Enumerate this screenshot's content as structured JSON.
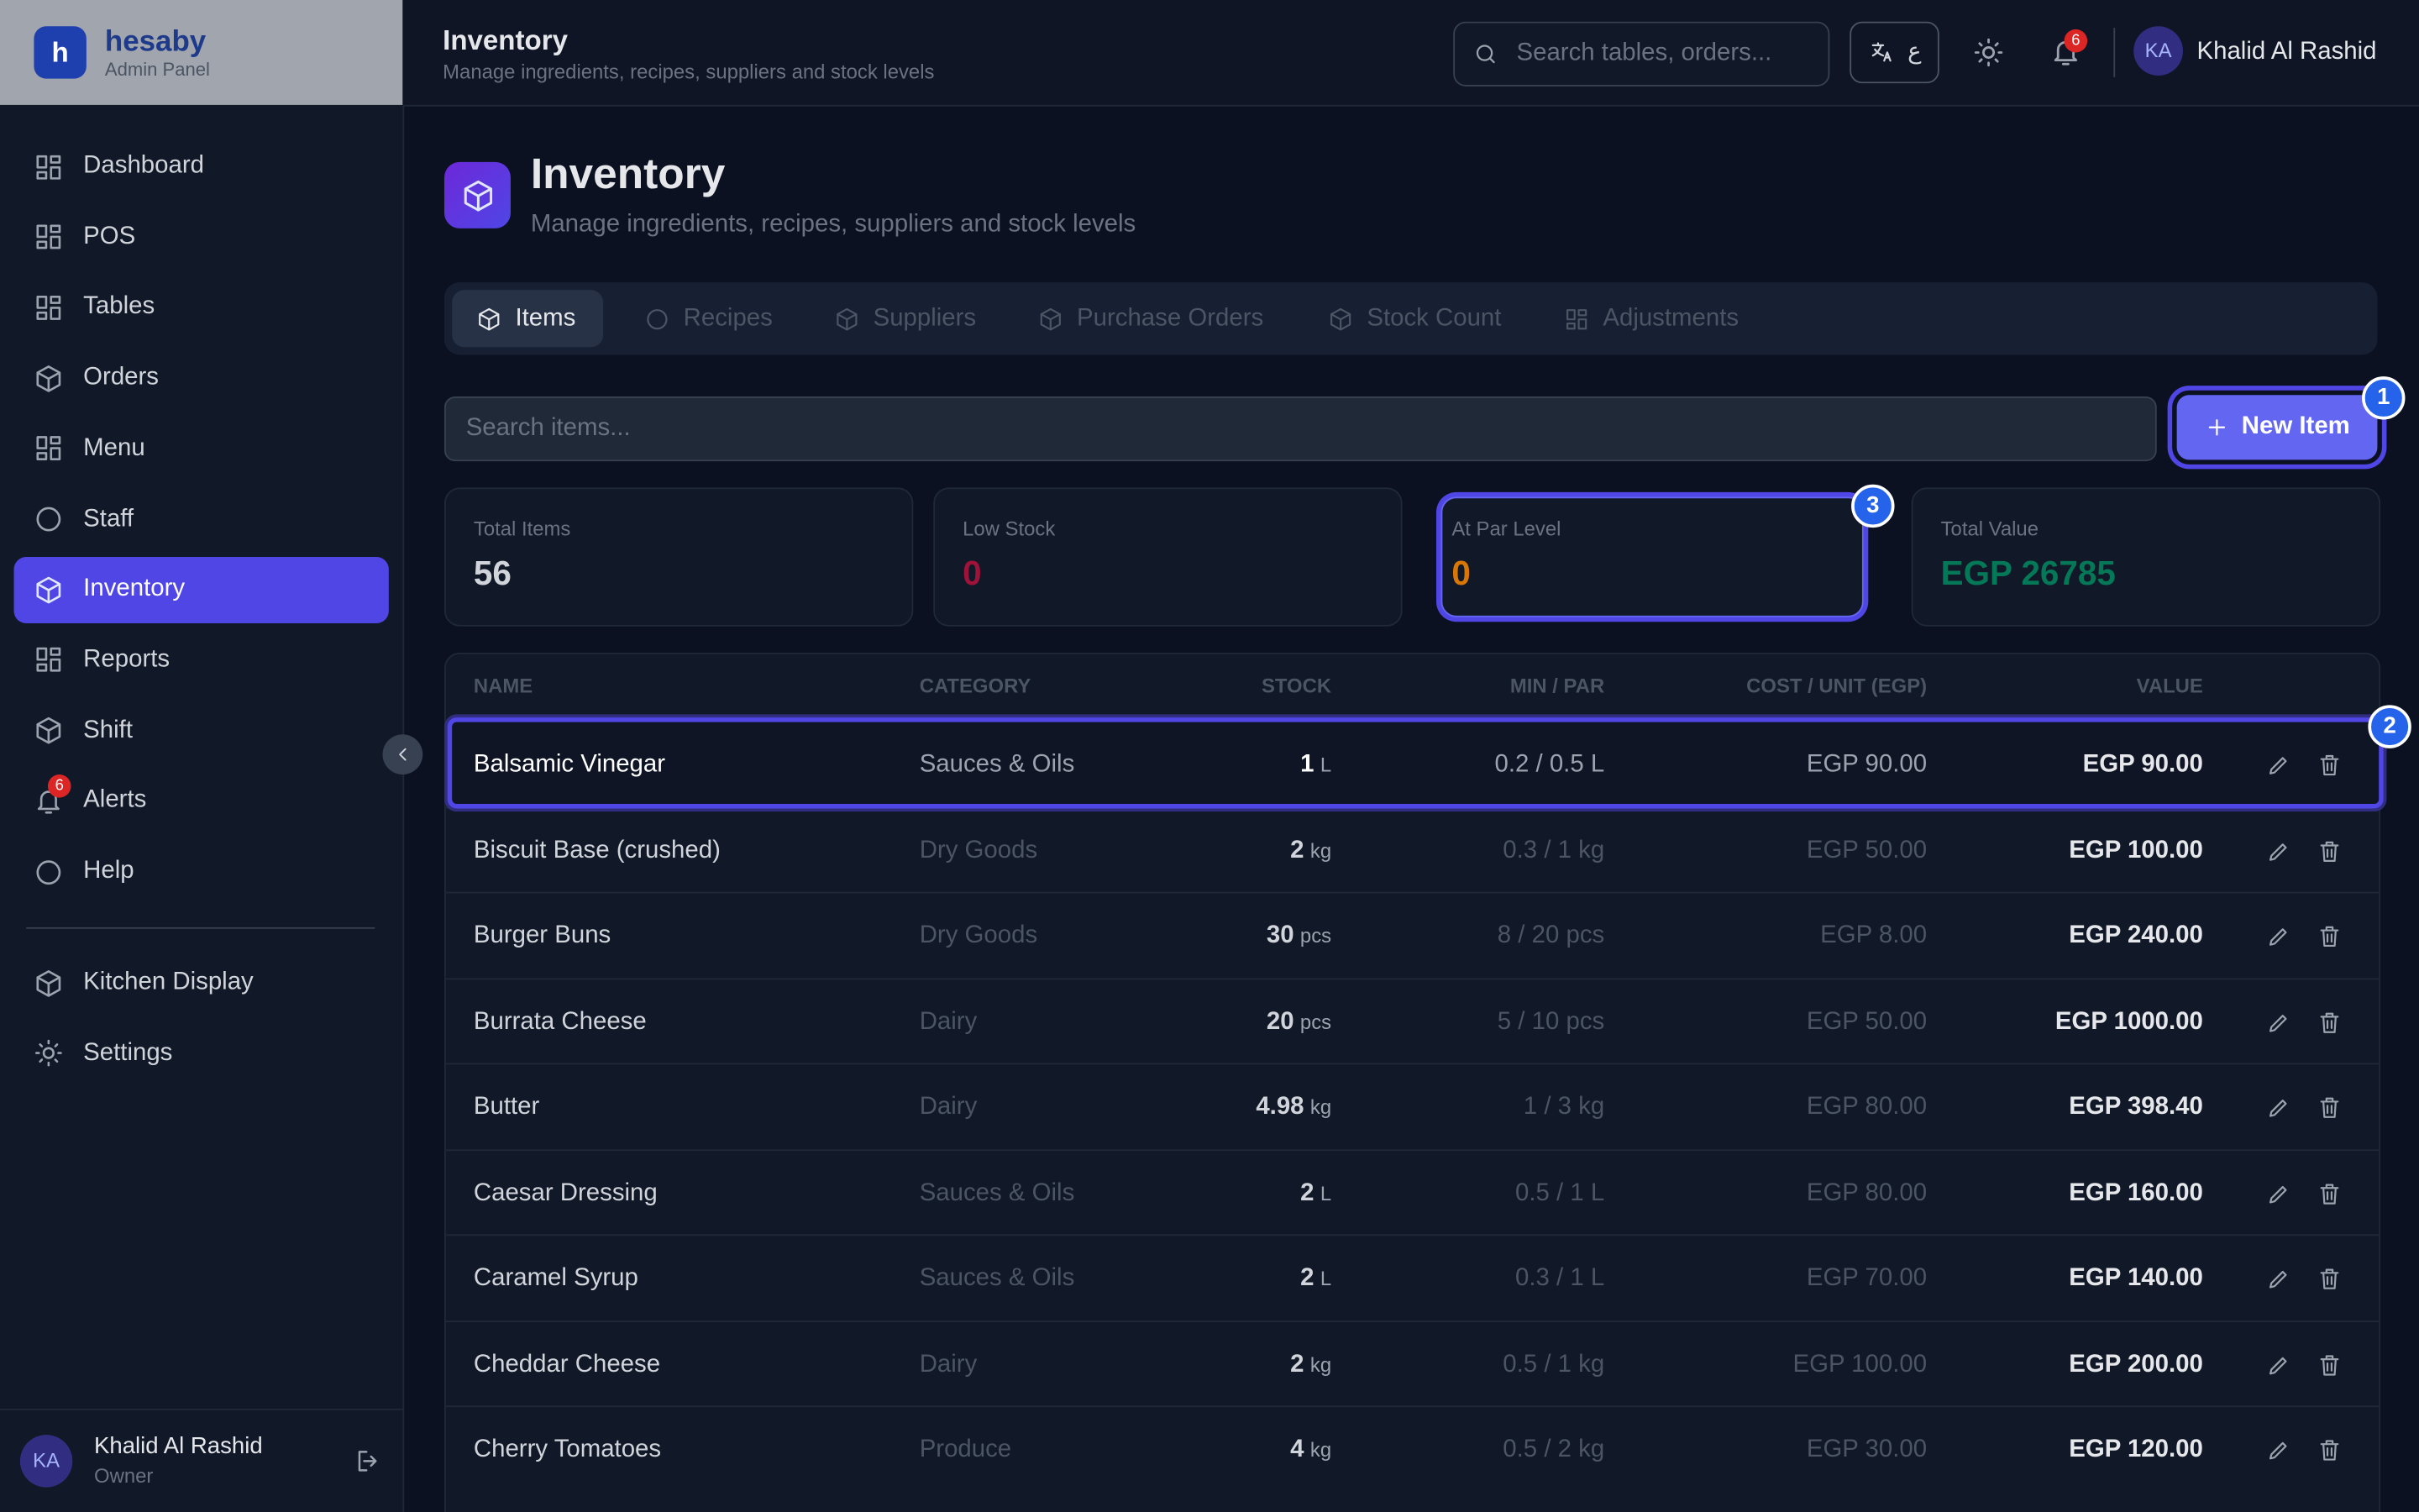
{
  "sidebar": {
    "brand": {
      "logo": "h",
      "name": "hesaby",
      "subtitle": "Admin Panel"
    },
    "nav": [
      {
        "label": "Dashboard"
      },
      {
        "label": "POS"
      },
      {
        "label": "Tables"
      },
      {
        "label": "Orders"
      },
      {
        "label": "Menu"
      },
      {
        "label": "Staff"
      },
      {
        "label": "Inventory",
        "active": true
      },
      {
        "label": "Reports"
      },
      {
        "label": "Shift"
      },
      {
        "label": "Alerts",
        "badge": "6"
      },
      {
        "label": "Help"
      }
    ],
    "secondary_nav": [
      "Kitchen Display",
      "Settings"
    ],
    "user": {
      "initials": "KA",
      "name": "Khalid Al Rashid",
      "role": "Owner"
    }
  },
  "topbar": {
    "title": "Inventory",
    "subtitle": "Manage ingredients, recipes, suppliers and stock levels",
    "search_placeholder": "Search tables, orders...",
    "language": "ع",
    "notifications": "6",
    "user": {
      "initials": "KA",
      "name": "Khalid Al Rashid"
    }
  },
  "page": {
    "title": "Inventory",
    "subtitle": "Manage ingredients, recipes, suppliers and stock levels",
    "tabs": [
      {
        "label": "Items",
        "active": true
      },
      {
        "label": "Recipes"
      },
      {
        "label": "Suppliers"
      },
      {
        "label": "Purchase Orders"
      },
      {
        "label": "Stock Count"
      },
      {
        "label": "Adjustments"
      }
    ],
    "search_placeholder": "Search items...",
    "new_item": "New Item",
    "stats": [
      {
        "label": "Total Items",
        "value": "56",
        "color": "#d1d5db"
      },
      {
        "label": "Low Stock",
        "value": "0",
        "color": "#9f1239"
      },
      {
        "label": "At Par Level",
        "value": "0",
        "color": "#d97706"
      },
      {
        "label": "Total Value",
        "value": "EGP 26785",
        "color": "#047857"
      }
    ],
    "table": {
      "columns": [
        "NAME",
        "CATEGORY",
        "STOCK",
        "MIN / PAR",
        "COST / UNIT (EGP)",
        "VALUE"
      ],
      "rows": [
        [
          "Balsamic Vinegar",
          "Sauces & Oils",
          "1",
          "L",
          "0.2 / 0.5 L",
          "EGP 90.00",
          "EGP 90.00"
        ],
        [
          "Biscuit Base (crushed)",
          "Dry Goods",
          "2",
          "kg",
          "0.3 / 1 kg",
          "EGP 50.00",
          "EGP 100.00"
        ],
        [
          "Burger Buns",
          "Dry Goods",
          "30",
          "pcs",
          "8 / 20 pcs",
          "EGP 8.00",
          "EGP 240.00"
        ],
        [
          "Burrata Cheese",
          "Dairy",
          "20",
          "pcs",
          "5 / 10 pcs",
          "EGP 50.00",
          "EGP 1000.00"
        ],
        [
          "Butter",
          "Dairy",
          "4.98",
          "kg",
          "1 / 3 kg",
          "EGP 80.00",
          "EGP 398.40"
        ],
        [
          "Caesar Dressing",
          "Sauces & Oils",
          "2",
          "L",
          "0.5 / 1 L",
          "EGP 80.00",
          "EGP 160.00"
        ],
        [
          "Caramel Syrup",
          "Sauces & Oils",
          "2",
          "L",
          "0.3 / 1 L",
          "EGP 70.00",
          "EGP 140.00"
        ],
        [
          "Cheddar Cheese",
          "Dairy",
          "2",
          "kg",
          "0.5 / 1 kg",
          "EGP 100.00",
          "EGP 200.00"
        ],
        [
          "Cherry Tomatoes",
          "Produce",
          "4",
          "kg",
          "0.5 / 2 kg",
          "EGP 30.00",
          "EGP 120.00"
        ]
      ]
    }
  },
  "annotations": [
    "1",
    "2",
    "3"
  ]
}
